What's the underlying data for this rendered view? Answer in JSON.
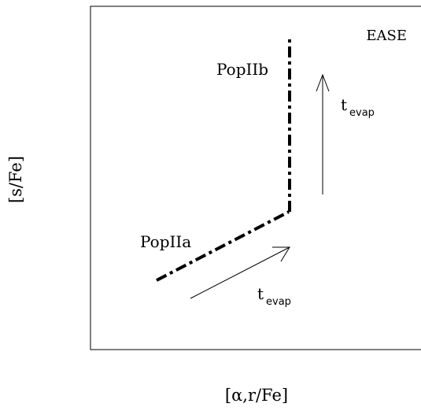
{
  "panel_label": "EASE",
  "axes": {
    "xlabel": "[α,r/Fe]",
    "ylabel": "[s/Fe]"
  },
  "tracks": [
    {
      "label": "PopIIa",
      "style": "dash-dot"
    },
    {
      "label": "PopIIb",
      "style": "dash-dot"
    }
  ],
  "arrows": [
    {
      "label_main": "t",
      "label_sub": "evap"
    },
    {
      "label_main": "t",
      "label_sub": "evap"
    }
  ],
  "colors": {
    "ink": "#000000",
    "background": "#ffffff"
  }
}
